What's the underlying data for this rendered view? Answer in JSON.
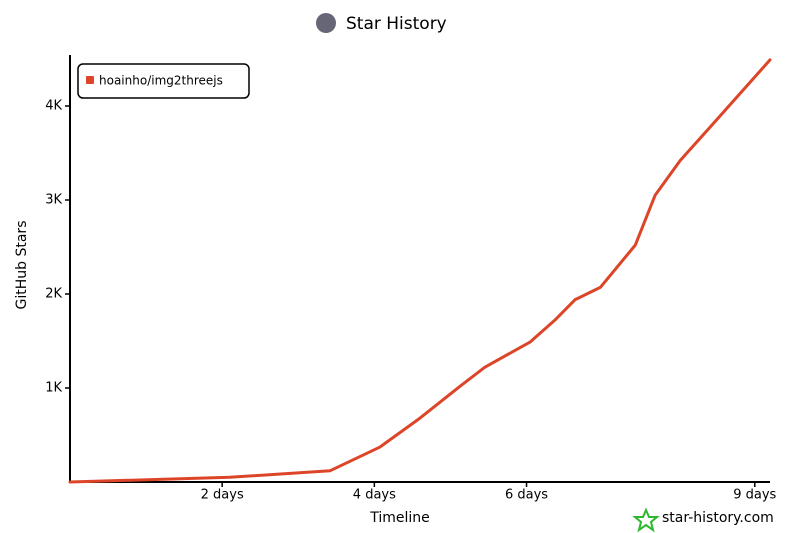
{
  "chart_data": {
    "type": "line",
    "title": "Star History",
    "x_label": "Timeline",
    "y_label": "GitHub Stars",
    "watermark": "star-history.com",
    "x": [
      0,
      2.1,
      3.42,
      4.07,
      4.6,
      5.13,
      5.45,
      6.05,
      6.37,
      6.64,
      6.97,
      7.43,
      7.69,
      8.02,
      8.54,
      9.2
    ],
    "series": [
      {
        "name": "hoainho/img2threejs",
        "color": "#dd4528",
        "values": [
          0,
          50,
          120,
          370,
          680,
          1020,
          1220,
          1490,
          1720,
          1940,
          2070,
          2520,
          3050,
          3420,
          3890,
          4490
        ]
      }
    ],
    "xlim": [
      0,
      9.2
    ],
    "xticks": [
      {
        "value": 2,
        "label": "2 days"
      },
      {
        "value": 4,
        "label": "4 days"
      },
      {
        "value": 6,
        "label": "6 days"
      },
      {
        "value": 9,
        "label": "9 days"
      }
    ],
    "ylim": [
      0,
      4500
    ],
    "yticks": [
      {
        "value": 1000,
        "label": "1K"
      },
      {
        "value": 2000,
        "label": "2K"
      },
      {
        "value": 3000,
        "label": "3K"
      },
      {
        "value": 4000,
        "label": "4K"
      }
    ],
    "legend": "top-left"
  }
}
